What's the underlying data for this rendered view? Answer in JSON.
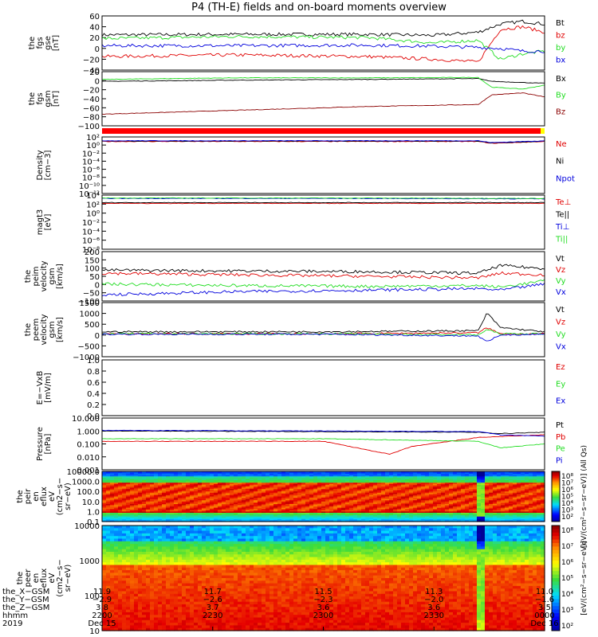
{
  "title": "P4 (TH-E) fields and on-board moments overview",
  "colors": {
    "black": "#000000",
    "red": "#e00000",
    "green": "#22dd22",
    "blue": "#0000dd",
    "darkred": "#8b0000",
    "grey": "#666666"
  },
  "chart_data": [
    {
      "type": "line",
      "panel": "fgs-gse",
      "ylabel": [
        "the",
        "fgs",
        "gse",
        "[nT]"
      ],
      "ylim": [
        -40,
        60
      ],
      "ticks": [
        "60",
        "40",
        "20",
        "0",
        "−20",
        "−40"
      ],
      "legend": [
        "Bt",
        "bz",
        "by",
        "bx"
      ],
      "series": [
        {
          "name": "Bt",
          "color": "#000000",
          "x": [
            0,
            0.3,
            0.6,
            0.75,
            0.85,
            0.9,
            0.95,
            1.0
          ],
          "y": [
            25,
            26,
            26,
            24,
            30,
            45,
            50,
            45
          ]
        },
        {
          "name": "bz",
          "color": "#e00000",
          "x": [
            0,
            0.3,
            0.6,
            0.75,
            0.85,
            0.9,
            0.95,
            1.0
          ],
          "y": [
            -15,
            -12,
            -15,
            -20,
            -25,
            35,
            40,
            30
          ]
        },
        {
          "name": "by",
          "color": "#22dd22",
          "x": [
            0,
            0.3,
            0.6,
            0.75,
            0.85,
            0.9,
            0.95,
            1.0
          ],
          "y": [
            18,
            22,
            20,
            10,
            15,
            -20,
            -10,
            -5
          ]
        },
        {
          "name": "bx",
          "color": "#0000dd",
          "x": [
            0,
            0.3,
            0.6,
            0.75,
            0.85,
            0.9,
            0.95,
            1.0
          ],
          "y": [
            5,
            5,
            6,
            4,
            2,
            0,
            -5,
            -5
          ]
        }
      ]
    },
    {
      "type": "line",
      "panel": "fgs-gsm",
      "ylabel": [
        "the",
        "fgs",
        "gsm",
        "[nT]"
      ],
      "ylim": [
        -110,
        30
      ],
      "ticks": [
        "20",
        "0",
        "−20",
        "−40",
        "−60",
        "−80",
        "−100"
      ],
      "legend": [
        "Bx",
        "By",
        "Bz"
      ],
      "series": [
        {
          "name": "Bx",
          "color": "#000000",
          "x": [
            0,
            0.3,
            0.6,
            0.85,
            0.88,
            0.95,
            1.0
          ],
          "y": [
            5,
            8,
            10,
            12,
            5,
            2,
            0
          ]
        },
        {
          "name": "By",
          "color": "#22dd22",
          "x": [
            0,
            0.3,
            0.6,
            0.85,
            0.88,
            0.95,
            1.0
          ],
          "y": [
            10,
            14,
            14,
            15,
            -10,
            -15,
            -5
          ]
        },
        {
          "name": "Bz",
          "color": "#8b0000",
          "x": [
            0,
            0.3,
            0.6,
            0.85,
            0.88,
            0.95,
            1.0
          ],
          "y": [
            -80,
            -70,
            -60,
            -55,
            -30,
            -25,
            -35
          ]
        }
      ]
    },
    {
      "type": "line",
      "panel": "density",
      "ylabel": [
        "Density",
        "[cm−3]"
      ],
      "scale": "log",
      "ylim": [
        -13,
        2
      ],
      "ticks": [
        "10²",
        "10⁰",
        "10⁻²",
        "10⁻⁴",
        "10⁻⁶",
        "10⁻⁸",
        "10⁻¹⁰",
        "10⁻¹²"
      ],
      "legend": [
        "Ne",
        "Ni",
        "Npot"
      ],
      "series": [
        {
          "name": "Ne",
          "color": "#e00000",
          "x": [
            0,
            0.6,
            0.85,
            0.88,
            1.0
          ],
          "y": [
            0.8,
            0.8,
            0.8,
            0.3,
            0.8
          ]
        },
        {
          "name": "Ni",
          "color": "#000000",
          "x": [
            0,
            0.6,
            0.85,
            0.88,
            1.0
          ],
          "y": [
            0.9,
            0.9,
            0.9,
            0.4,
            0.9
          ]
        },
        {
          "name": "Npot",
          "color": "#0000dd",
          "x": [
            0,
            0.6,
            0.85,
            0.88,
            1.0
          ],
          "y": [
            1.0,
            1.0,
            1.0,
            0.5,
            1.0
          ]
        }
      ]
    },
    {
      "type": "line",
      "panel": "temperature",
      "ylabel": [
        "magt3",
        "[eV]"
      ],
      "scale": "log",
      "ylim": [
        -9,
        4
      ],
      "ticks": [
        "10⁴",
        "10²",
        "10⁰",
        "10⁻²",
        "10⁻⁴",
        "10⁻⁶",
        "10⁻⁸"
      ],
      "legend": [
        "Te⊥",
        "Te||",
        "Ti⊥",
        "Ti||"
      ],
      "series": [
        {
          "name": "Te⊥",
          "color": "#e00000",
          "x": [
            0,
            0.5,
            1.0
          ],
          "y": [
            2.0,
            2.0,
            2.0
          ]
        },
        {
          "name": "Te||",
          "color": "#000000",
          "x": [
            0,
            0.5,
            1.0
          ],
          "y": [
            2.2,
            2.2,
            2.2
          ]
        },
        {
          "name": "Ti⊥",
          "color": "#0000dd",
          "x": [
            0,
            0.5,
            1.0
          ],
          "y": [
            3.2,
            3.2,
            3.1
          ]
        },
        {
          "name": "Ti||",
          "color": "#22dd22",
          "x": [
            0,
            0.5,
            1.0
          ],
          "y": [
            3.3,
            3.3,
            3.2
          ]
        }
      ]
    },
    {
      "type": "line",
      "panel": "peim-velocity",
      "ylabel": [
        "the",
        "peim",
        "velocity",
        "gsm",
        "[km/s]"
      ],
      "ylim": [
        -120,
        200
      ],
      "ticks": [
        "200",
        "150",
        "100",
        "50",
        "0",
        "−50",
        "−100"
      ],
      "legend": [
        "Vt",
        "Vz",
        "Vy",
        "Vx"
      ],
      "series": [
        {
          "name": "Vt",
          "color": "#000000",
          "x": [
            0,
            0.3,
            0.6,
            0.85,
            0.9,
            1.0
          ],
          "y": [
            80,
            75,
            70,
            60,
            110,
            90
          ]
        },
        {
          "name": "Vz",
          "color": "#e00000",
          "x": [
            0,
            0.3,
            0.6,
            0.85,
            0.9,
            1.0
          ],
          "y": [
            60,
            50,
            40,
            30,
            60,
            50
          ]
        },
        {
          "name": "Vy",
          "color": "#22dd22",
          "x": [
            0,
            0.3,
            0.6,
            0.85,
            0.9,
            1.0
          ],
          "y": [
            -10,
            -20,
            -25,
            -20,
            -30,
            10
          ]
        },
        {
          "name": "Vx",
          "color": "#0000dd",
          "x": [
            0,
            0.3,
            0.6,
            0.85,
            0.9,
            1.0
          ],
          "y": [
            -80,
            -60,
            -50,
            -40,
            -50,
            -10
          ]
        }
      ]
    },
    {
      "type": "line",
      "panel": "peem-velocity",
      "ylabel": [
        "the",
        "peem",
        "velocity",
        "gsm",
        "[km/s]"
      ],
      "ylim": [
        -1100,
        1500
      ],
      "ticks": [
        "1500",
        "1000",
        "500",
        "0",
        "−500",
        "−1000"
      ],
      "legend": [
        "Vt",
        "Vz",
        "Vy",
        "Vx"
      ],
      "series": [
        {
          "name": "Vt",
          "color": "#000000",
          "x": [
            0,
            0.5,
            0.85,
            0.87,
            0.9,
            1.0
          ],
          "y": [
            100,
            100,
            150,
            1000,
            300,
            100
          ]
        },
        {
          "name": "Vz",
          "color": "#e00000",
          "x": [
            0,
            0.5,
            0.85,
            0.87,
            0.9,
            1.0
          ],
          "y": [
            0,
            0,
            50,
            300,
            0,
            0
          ]
        },
        {
          "name": "Vy",
          "color": "#22dd22",
          "x": [
            0,
            0.5,
            0.85,
            0.87,
            0.9,
            1.0
          ],
          "y": [
            0,
            0,
            -50,
            200,
            0,
            0
          ]
        },
        {
          "name": "Vx",
          "color": "#0000dd",
          "x": [
            0,
            0.5,
            0.85,
            0.87,
            0.9,
            1.0
          ],
          "y": [
            -20,
            -20,
            -100,
            -400,
            -50,
            -20
          ]
        }
      ]
    },
    {
      "type": "line",
      "panel": "efield",
      "ylabel": [
        "E=−VxB",
        "[mV/m]"
      ],
      "ylim": [
        0,
        1.0
      ],
      "ticks": [
        "1.0",
        "0.8",
        "0.6",
        "0.4",
        "0.2",
        "0.0"
      ],
      "legend": [
        "Ez",
        "Ey",
        "Ex"
      ],
      "series": []
    },
    {
      "type": "line",
      "panel": "pressure",
      "ylabel": [
        "Pressure",
        "[nPa]"
      ],
      "scale": "log",
      "ylim": [
        -3,
        1
      ],
      "ticks": [
        "10.000",
        "1.000",
        "0.100",
        "0.010",
        "0.001"
      ],
      "legend": [
        "Pt",
        "Pb",
        "Pe",
        "Pi"
      ],
      "series": [
        {
          "name": "Pt",
          "color": "#000000",
          "x": [
            0,
            0.5,
            0.85,
            0.9,
            1.0
          ],
          "y": [
            0.0,
            -0.05,
            -0.1,
            -0.2,
            -0.1
          ]
        },
        {
          "name": "Pb",
          "color": "#e00000",
          "x": [
            0,
            0.5,
            0.65,
            0.7,
            0.85,
            1.0
          ],
          "y": [
            -0.8,
            -0.8,
            -1.8,
            -1.2,
            -0.5,
            -0.3
          ]
        },
        {
          "name": "Pe",
          "color": "#22dd22",
          "x": [
            0,
            0.5,
            0.85,
            0.9,
            1.0
          ],
          "y": [
            -0.6,
            -0.6,
            -0.8,
            -1.3,
            -1.0
          ]
        },
        {
          "name": "Pi",
          "color": "#0000dd",
          "x": [
            0,
            0.5,
            0.85,
            0.9,
            1.0
          ],
          "y": [
            0.05,
            0.0,
            -0.05,
            -0.3,
            -0.4
          ]
        }
      ]
    },
    {
      "type": "heatmap",
      "panel": "peir-eflux",
      "ylabel": [
        "the",
        "peir",
        "en",
        "eflux",
        "eV",
        "(cm2−s−",
        "sr−eV)"
      ],
      "ticks": [
        "10000.0",
        "1000.0",
        "100.0",
        "10.0",
        "1.0",
        "0.1"
      ],
      "colorbar_label": "[eV/(cm²−s−sr−eV)] (All Qs)",
      "colorbar_ticks": [
        "10⁸",
        "10⁷",
        "10⁶",
        "10⁵",
        "10⁴",
        "10³",
        "10²"
      ]
    },
    {
      "type": "heatmap",
      "panel": "peer-eflux",
      "ylabel": [
        "the",
        "peer",
        "en",
        "eflux",
        "eV",
        "(cm2−s−",
        "sr−eV)"
      ],
      "ticks": [
        "10000",
        "1000",
        "100",
        "10"
      ],
      "colorbar_label": "[eV/(cm²−s−sr−eV)]",
      "colorbar_ticks": [
        "10⁸",
        "10⁷",
        "10⁶",
        "10⁵",
        "10⁴",
        "10³",
        "10²"
      ]
    }
  ],
  "xaxis": {
    "row_labels": [
      "the_X−GSM",
      "the_Y−GSM",
      "the_Z−GSM",
      "hhmm",
      "2019"
    ],
    "columns": [
      {
        "vals": [
          "11.9",
          "−2.9",
          "3.8",
          "2200",
          "Dec 15"
        ]
      },
      {
        "vals": [
          "11.7",
          "−2.6",
          "3.7",
          "2230",
          ""
        ]
      },
      {
        "vals": [
          "11.5",
          "−2.3",
          "3.6",
          "2300",
          ""
        ]
      },
      {
        "vals": [
          "11.3",
          "−2.0",
          "3.6",
          "2330",
          ""
        ]
      },
      {
        "vals": [
          "11.0",
          "−1.6",
          "3.5",
          "0000",
          "Dec 16"
        ]
      }
    ]
  }
}
